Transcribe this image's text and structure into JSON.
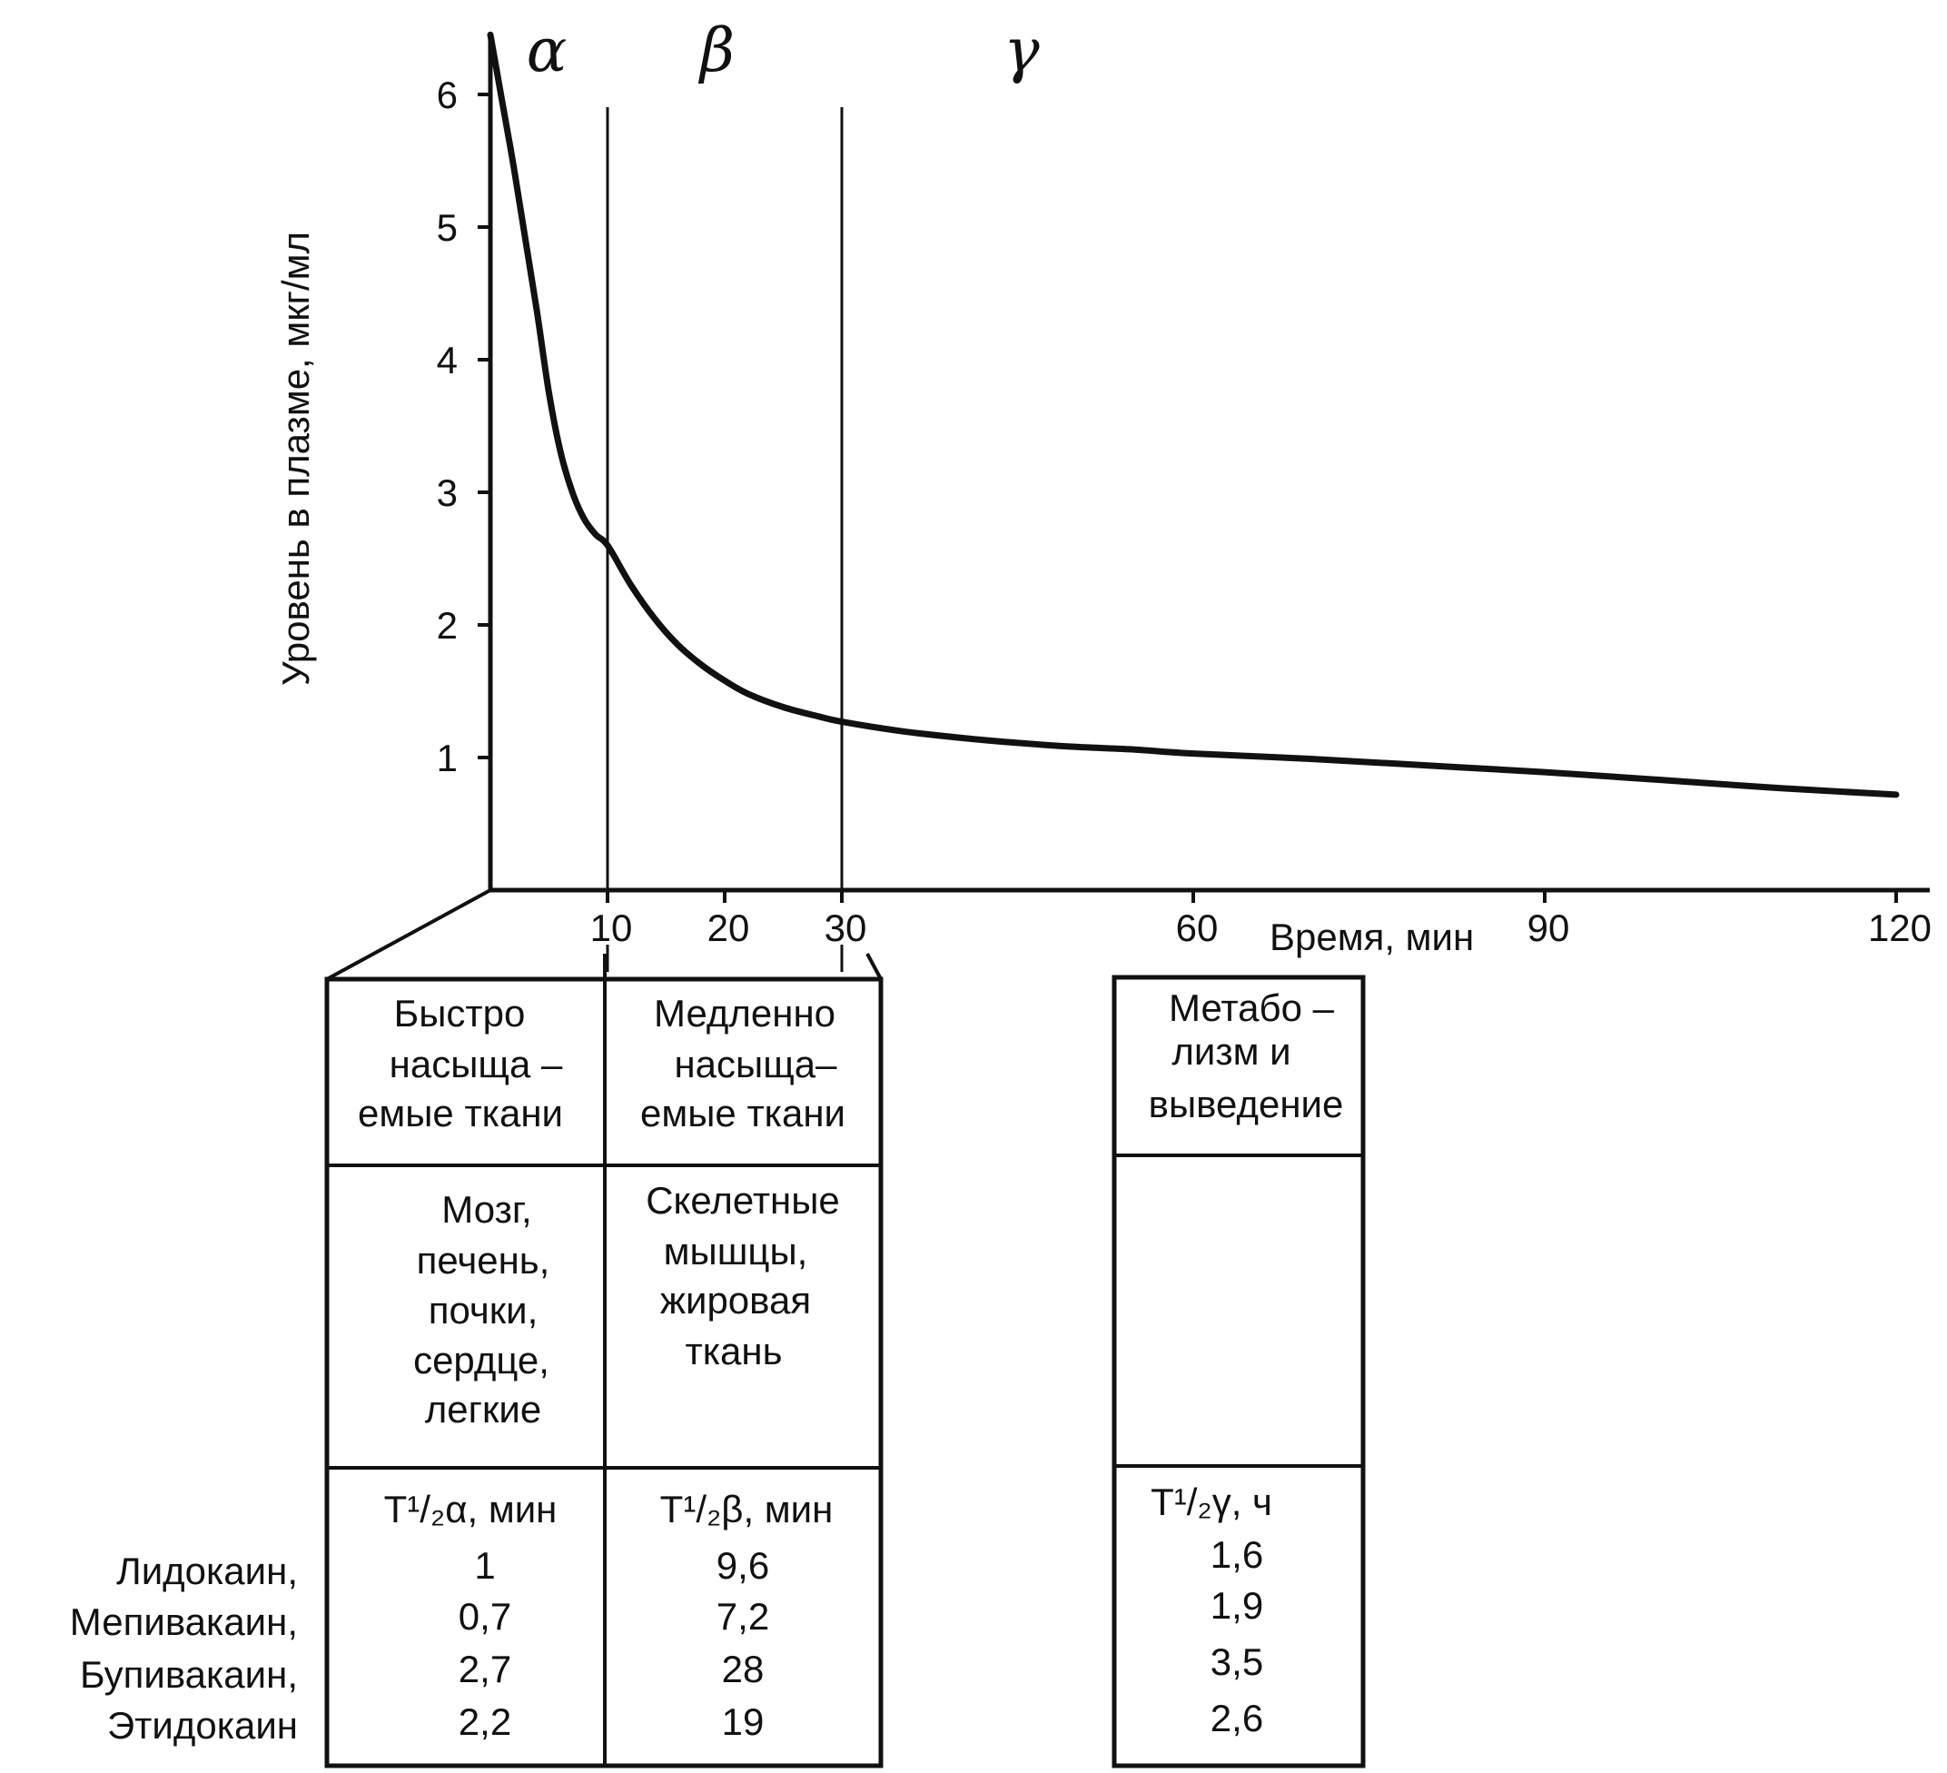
{
  "chart_data": {
    "type": "line",
    "title": "",
    "xlabel": "Время, мин",
    "ylabel": "Уровень в плазме, мкг/мл",
    "xlim": [
      0,
      122
    ],
    "ylim": [
      0,
      6.6
    ],
    "x_ticks": [
      10,
      20,
      30,
      60,
      90,
      120
    ],
    "y_ticks": [
      1,
      2,
      3,
      4,
      5,
      6
    ],
    "phase_boundaries": [
      10,
      30
    ],
    "phases": [
      "α",
      "β",
      "γ"
    ],
    "grid": false,
    "series": [
      {
        "x": [
          0,
          0.5,
          1,
          2,
          3,
          4,
          5,
          6,
          7,
          8,
          9,
          10,
          12,
          14,
          16,
          18,
          20,
          22,
          25,
          28,
          30,
          35,
          40,
          45,
          50,
          55,
          60,
          70,
          80,
          90,
          100,
          110,
          120
        ],
        "y": [
          6.45,
          6.2,
          5.95,
          5.45,
          4.9,
          4.35,
          3.75,
          3.3,
          3.0,
          2.8,
          2.68,
          2.6,
          2.3,
          2.05,
          1.85,
          1.7,
          1.58,
          1.48,
          1.38,
          1.31,
          1.27,
          1.2,
          1.15,
          1.11,
          1.08,
          1.06,
          1.03,
          0.99,
          0.94,
          0.89,
          0.83,
          0.77,
          0.72
        ]
      }
    ]
  },
  "tissues": {
    "fast": {
      "header": [
        "Быстро",
        "насыща –",
        "емые ткани"
      ],
      "organs": [
        "Мозг,",
        "печень,",
        "почки,",
        "сердце,",
        "легкие"
      ],
      "halflife_label": "T¹/₂α, мин",
      "values": [
        "1",
        "0,7",
        "2,7",
        "2,2"
      ]
    },
    "slow": {
      "header": [
        "Медленно",
        "насыща–",
        "емые ткани"
      ],
      "organs": [
        "Скелетные",
        "мышцы,",
        "жировая",
        "ткань"
      ],
      "halflife_label": "T¹/₂β, мин",
      "values": [
        "9,6",
        "7,2",
        "28",
        "19"
      ]
    },
    "elim": {
      "header": [
        "Метабо –",
        "лизм и",
        "выведение"
      ],
      "halflife_label": "T¹/₂γ, ч",
      "values": [
        "1,6",
        "1,9",
        "3,5",
        "2,6"
      ]
    }
  },
  "drugs": [
    "Лидокаин,",
    "Мепивакаин,",
    "Бупивакаин,",
    "Этидокаин"
  ]
}
